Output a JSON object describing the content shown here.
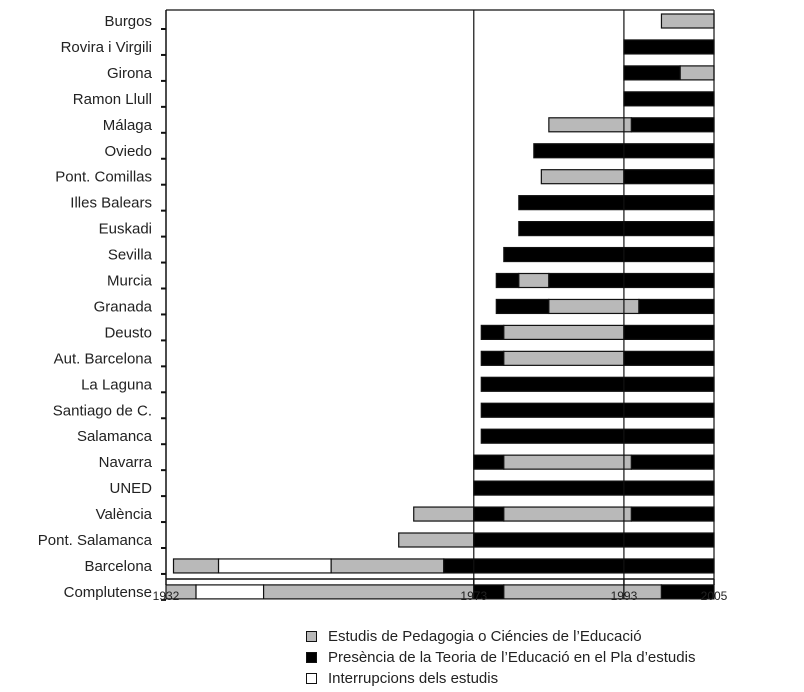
{
  "chart_data": {
    "type": "bar",
    "orientation": "horizontal",
    "subtype": "timeline",
    "xlim": [
      1932,
      2005
    ],
    "x_ticks": [
      1932,
      1973,
      1993,
      2005
    ],
    "reference_lines": [
      1973,
      1993
    ],
    "categories": [
      "Burgos",
      "Rovira i Virgili",
      "Girona",
      "Ramon Llull",
      "Málaga",
      "Oviedo",
      "Pont. Comillas",
      "Illes Balears",
      "Euskadi",
      "Sevilla",
      "Murcia",
      "Granada",
      "Deusto",
      "Aut. Barcelona",
      "La Laguna",
      "Santiago de C.",
      "Salamanca",
      "Navarra",
      "UNED",
      "València",
      "Pont. Salamanca",
      "Barcelona",
      "Complutense"
    ],
    "segments": [
      [
        {
          "from": 1998,
          "to": 2005,
          "kind": "pedagogia"
        }
      ],
      [
        {
          "from": 1993,
          "to": 2005,
          "kind": "teoria"
        }
      ],
      [
        {
          "from": 1993,
          "to": 2000.5,
          "kind": "teoria"
        },
        {
          "from": 2000.5,
          "to": 2005,
          "kind": "pedagogia"
        }
      ],
      [
        {
          "from": 1993,
          "to": 2005,
          "kind": "teoria"
        }
      ],
      [
        {
          "from": 1983,
          "to": 1994,
          "kind": "pedagogia"
        },
        {
          "from": 1994,
          "to": 2005,
          "kind": "teoria"
        }
      ],
      [
        {
          "from": 1981,
          "to": 2005,
          "kind": "teoria"
        }
      ],
      [
        {
          "from": 1982,
          "to": 1993,
          "kind": "pedagogia"
        },
        {
          "from": 1993,
          "to": 2005,
          "kind": "teoria"
        }
      ],
      [
        {
          "from": 1979,
          "to": 2005,
          "kind": "teoria"
        }
      ],
      [
        {
          "from": 1979,
          "to": 2005,
          "kind": "teoria"
        }
      ],
      [
        {
          "from": 1977,
          "to": 2005,
          "kind": "teoria"
        }
      ],
      [
        {
          "from": 1976,
          "to": 1979,
          "kind": "teoria"
        },
        {
          "from": 1979,
          "to": 1983,
          "kind": "pedagogia"
        },
        {
          "from": 1983,
          "to": 2005,
          "kind": "teoria"
        }
      ],
      [
        {
          "from": 1976,
          "to": 1983,
          "kind": "teoria"
        },
        {
          "from": 1983,
          "to": 1995,
          "kind": "pedagogia"
        },
        {
          "from": 1995,
          "to": 2005,
          "kind": "teoria"
        }
      ],
      [
        {
          "from": 1974,
          "to": 1977,
          "kind": "teoria"
        },
        {
          "from": 1977,
          "to": 1993,
          "kind": "pedagogia"
        },
        {
          "from": 1993,
          "to": 2005,
          "kind": "teoria"
        }
      ],
      [
        {
          "from": 1974,
          "to": 1977,
          "kind": "teoria"
        },
        {
          "from": 1977,
          "to": 1993,
          "kind": "pedagogia"
        },
        {
          "from": 1993,
          "to": 2005,
          "kind": "teoria"
        }
      ],
      [
        {
          "from": 1974,
          "to": 2005,
          "kind": "teoria"
        }
      ],
      [
        {
          "from": 1974,
          "to": 2005,
          "kind": "teoria"
        }
      ],
      [
        {
          "from": 1974,
          "to": 2005,
          "kind": "teoria"
        }
      ],
      [
        {
          "from": 1973,
          "to": 1977,
          "kind": "teoria"
        },
        {
          "from": 1977,
          "to": 1994,
          "kind": "pedagogia"
        },
        {
          "from": 1994,
          "to": 2005,
          "kind": "teoria"
        }
      ],
      [
        {
          "from": 1973,
          "to": 2005,
          "kind": "teoria"
        }
      ],
      [
        {
          "from": 1965,
          "to": 1973,
          "kind": "pedagogia"
        },
        {
          "from": 1973,
          "to": 1977,
          "kind": "teoria"
        },
        {
          "from": 1977,
          "to": 1994,
          "kind": "pedagogia"
        },
        {
          "from": 1994,
          "to": 2005,
          "kind": "teoria"
        }
      ],
      [
        {
          "from": 1963,
          "to": 1973,
          "kind": "pedagogia"
        },
        {
          "from": 1973,
          "to": 2005,
          "kind": "teoria"
        }
      ],
      [
        {
          "from": 1933,
          "to": 1939,
          "kind": "pedagogia"
        },
        {
          "from": 1939,
          "to": 1954,
          "kind": "interrupcio"
        },
        {
          "from": 1954,
          "to": 1969,
          "kind": "pedagogia"
        },
        {
          "from": 1969,
          "to": 2005,
          "kind": "teoria"
        }
      ],
      [
        {
          "from": 1932,
          "to": 1936,
          "kind": "pedagogia"
        },
        {
          "from": 1936,
          "to": 1945,
          "kind": "interrupcio"
        },
        {
          "from": 1945,
          "to": 1973,
          "kind": "pedagogia"
        },
        {
          "from": 1973,
          "to": 1977,
          "kind": "teoria"
        },
        {
          "from": 1977,
          "to": 1993,
          "kind": "pedagogia"
        },
        {
          "from": 1993,
          "to": 1998,
          "kind": "pedagogia"
        },
        {
          "from": 1998,
          "to": 2005,
          "kind": "teoria"
        }
      ]
    ],
    "legend": [
      {
        "kind": "pedagogia",
        "label": "Estudis de Pedagogia o Ciéncies de l’Educació"
      },
      {
        "kind": "teoria",
        "label": "Presència de la Teoria de l’Educació en el Pla d’estudis"
      },
      {
        "kind": "interrupcio",
        "label": "Interrupcions dels estudis"
      }
    ],
    "colors": {
      "pedagogia": "#b9b9b9",
      "teoria": "#000000",
      "interrupcio": "#ffffff",
      "stroke": "#111111"
    },
    "grid": false,
    "legend_position": "bottom"
  }
}
